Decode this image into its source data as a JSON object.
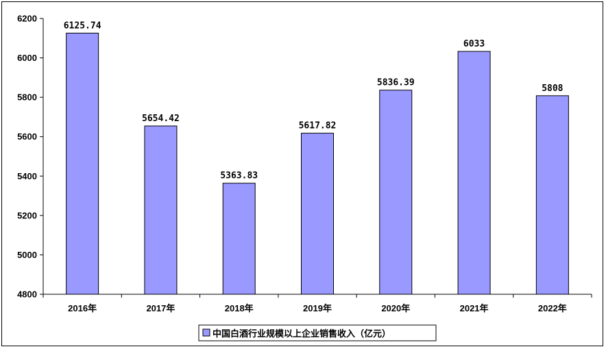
{
  "chart_data": {
    "type": "bar",
    "categories": [
      "2016年",
      "2017年",
      "2018年",
      "2019年",
      "2020年",
      "2021年",
      "2022年"
    ],
    "series": [
      {
        "name": "中国白酒行业规模以上企业销售收入（亿元）",
        "values": [
          6125.74,
          5654.42,
          5363.83,
          5617.82,
          5836.39,
          6033,
          5808
        ],
        "value_labels": [
          "6125.74",
          "5654.42",
          "5363.83",
          "5617.82",
          "5836.39",
          "6033",
          "5808"
        ],
        "color": "#9999ff"
      }
    ],
    "ylim": [
      4800,
      6200
    ],
    "yticks": [
      "4800",
      "5000",
      "5200",
      "5400",
      "5600",
      "5800",
      "6000",
      "6200"
    ],
    "ytick_values": [
      4800,
      5000,
      5200,
      5400,
      5600,
      5800,
      6000,
      6200
    ],
    "grid": false,
    "legend_position": "bottom-center",
    "title": "",
    "xlabel": "",
    "ylabel": ""
  }
}
